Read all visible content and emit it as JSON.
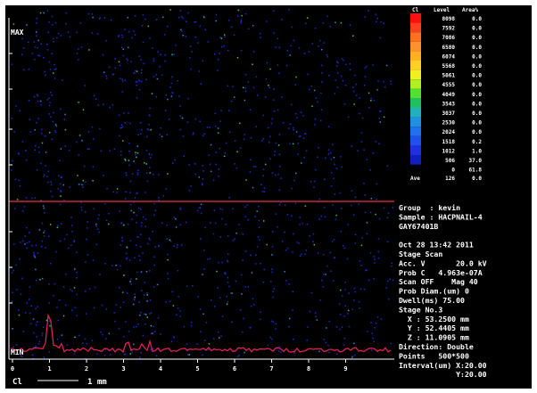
{
  "map": {
    "max_label": "MAX",
    "min_label": "MIN",
    "x_ticks": [
      "0",
      "1",
      "2",
      "3",
      "4",
      "5",
      "6",
      "7",
      "8",
      "9"
    ],
    "element": "Cl",
    "scale_label": "1 mm"
  },
  "legend": {
    "header": [
      "Cl",
      "Level",
      "Area%"
    ],
    "rows": [
      {
        "level": "8098",
        "area": "0.0"
      },
      {
        "level": "7592",
        "area": "0.0"
      },
      {
        "level": "7086",
        "area": "0.0"
      },
      {
        "level": "6580",
        "area": "0.0"
      },
      {
        "level": "6074",
        "area": "0.0"
      },
      {
        "level": "5568",
        "area": "0.0"
      },
      {
        "level": "5061",
        "area": "0.0"
      },
      {
        "level": "4555",
        "area": "0.0"
      },
      {
        "level": "4049",
        "area": "0.0"
      },
      {
        "level": "3543",
        "area": "0.0"
      },
      {
        "level": "3037",
        "area": "0.0"
      },
      {
        "level": "2530",
        "area": "0.0"
      },
      {
        "level": "2024",
        "area": "0.0"
      },
      {
        "level": "1518",
        "area": "0.2"
      },
      {
        "level": "1012",
        "area": "1.0"
      },
      {
        "level": "506",
        "area": "37.0"
      },
      {
        "level": "0",
        "area": "61.8"
      }
    ],
    "average": {
      "label": "Ave",
      "level": "126",
      "area": "0.0"
    }
  },
  "info": [
    "Group  : kevin",
    "Sample : HACPNAIL-4",
    "GAY67401B",
    "",
    "Oct 28 13:42 2011",
    "Stage Scan",
    "Acc. V       20.0 kV",
    "Prob C   4.963e-07A",
    "Scan OFF    Mag 40",
    "Prob Diam.(um) 0",
    "Dwell(ms) 75.00",
    "Stage No.3",
    "  X : 53.2500 mm",
    "  Y : 52.4405 mm",
    "  Z : 11.0905 mm",
    "Direction: Double",
    "Points   500*500",
    "Interval(um) X:20.00",
    "             Y:20.00"
  ]
}
